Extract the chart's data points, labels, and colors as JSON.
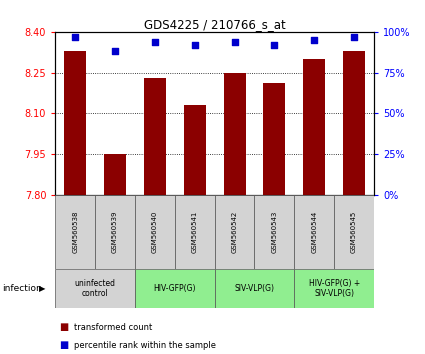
{
  "title": "GDS4225 / 210766_s_at",
  "samples": [
    "GSM560538",
    "GSM560539",
    "GSM560540",
    "GSM560541",
    "GSM560542",
    "GSM560543",
    "GSM560544",
    "GSM560545"
  ],
  "bar_values": [
    8.33,
    7.95,
    8.23,
    8.13,
    8.25,
    8.21,
    8.3,
    8.33
  ],
  "percentile_values": [
    97,
    88,
    94,
    92,
    94,
    92,
    95,
    97
  ],
  "ymin": 7.8,
  "ymax": 8.4,
  "yticks": [
    7.8,
    7.95,
    8.1,
    8.25,
    8.4
  ],
  "right_yticks": [
    0,
    25,
    50,
    75,
    100
  ],
  "bar_color": "#8B0000",
  "dot_color": "#0000CC",
  "grid_color": "#000000",
  "groups": [
    {
      "label": "uninfected\ncontrol",
      "start": 0,
      "end": 2,
      "color": "#d3d3d3"
    },
    {
      "label": "HIV-GFP(G)",
      "start": 2,
      "end": 4,
      "color": "#90EE90"
    },
    {
      "label": "SIV-VLP(G)",
      "start": 4,
      "end": 6,
      "color": "#90EE90"
    },
    {
      "label": "HIV-GFP(G) +\nSIV-VLP(G)",
      "start": 6,
      "end": 8,
      "color": "#90EE90"
    }
  ],
  "legend_items": [
    {
      "color": "#8B0000",
      "label": "transformed count"
    },
    {
      "color": "#0000CC",
      "label": "percentile rank within the sample"
    }
  ],
  "infection_label": "infection",
  "bar_width": 0.55,
  "dot_size": 25,
  "sample_box_color": "#d3d3d3",
  "box_edge_color": "#555555"
}
